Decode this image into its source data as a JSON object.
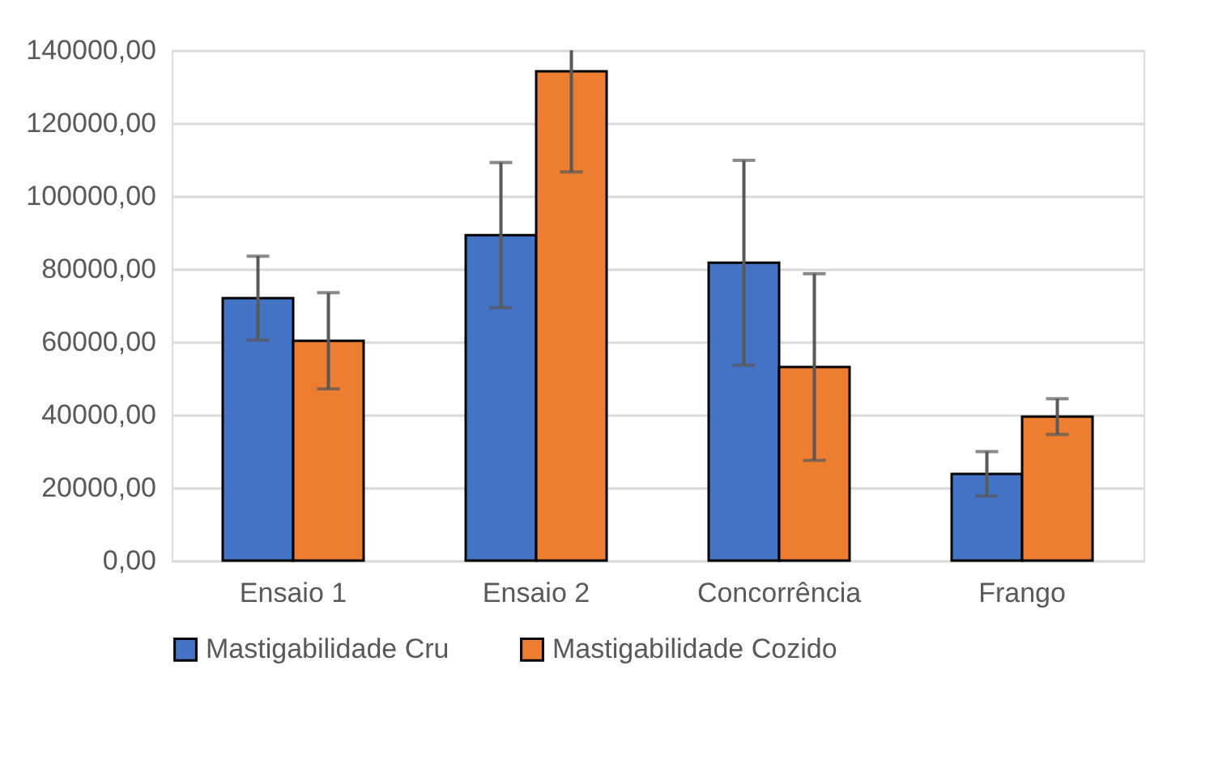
{
  "chart_data": {
    "type": "bar",
    "categories": [
      "Ensaio 1",
      "Ensaio 2",
      "Concorrência",
      "Frango"
    ],
    "series": [
      {
        "name": "Mastigabilidade Cru",
        "color": "#4472c4",
        "values": [
          72000,
          89300,
          81700,
          23800
        ],
        "errors": [
          11500,
          19900,
          28100,
          6100
        ]
      },
      {
        "name": "Mastigabilidade Cozido",
        "color": "#ed7d31",
        "values": [
          60300,
          134200,
          53100,
          39500
        ],
        "errors": [
          13200,
          [
            106600,
            140000
          ],
          25600,
          4900
        ]
      }
    ],
    "ylim": [
      0,
      140000
    ],
    "yticks": [
      {
        "value": 0,
        "label": "0,00"
      },
      {
        "value": 20000,
        "label": "20000,00"
      },
      {
        "value": 40000,
        "label": "40000,00"
      },
      {
        "value": 60000,
        "label": "60000,00"
      },
      {
        "value": 80000,
        "label": "80000,00"
      },
      {
        "value": 100000,
        "label": "100000,00"
      },
      {
        "value": 120000,
        "label": "120000,00"
      },
      {
        "value": 140000,
        "label": "140000,00"
      }
    ],
    "grid": "y",
    "legend": "bottom"
  }
}
